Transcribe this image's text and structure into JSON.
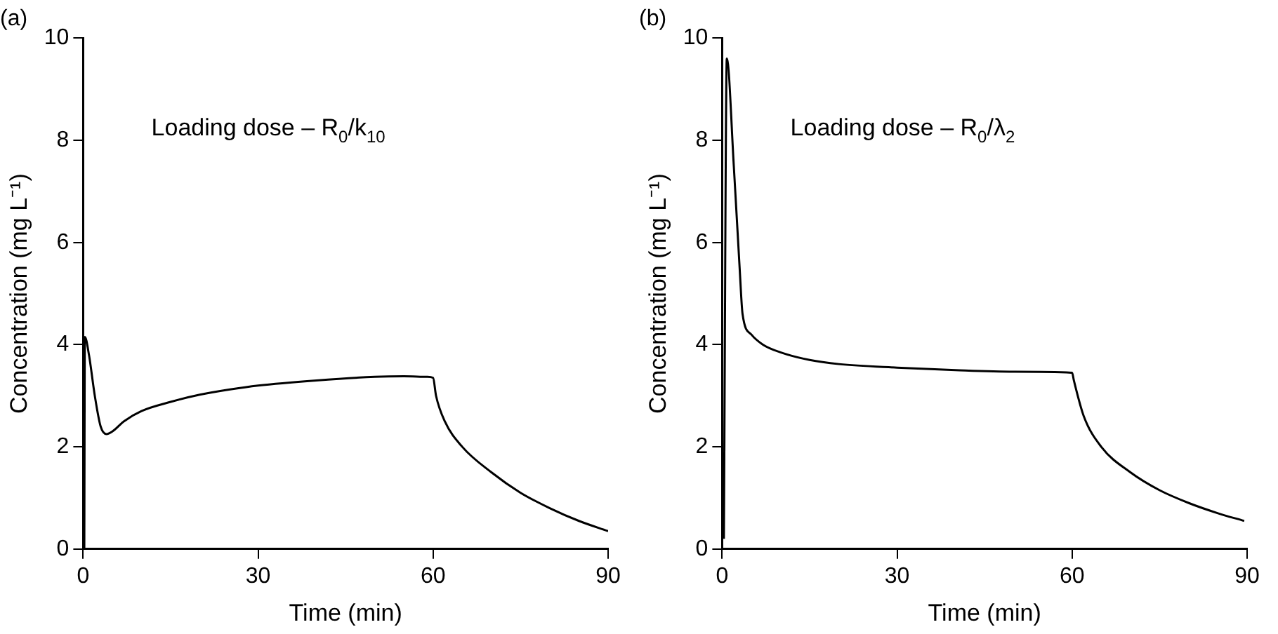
{
  "chart_data": [
    {
      "type": "line",
      "title": "(a)",
      "xlabel": "Time (min)",
      "ylabel": "Concentration (mg L⁻¹)",
      "annotations": [
        "Loading dose – R$_{0}$/k$_{10}$"
      ],
      "xlim": [
        0,
        90
      ],
      "xticks": [
        0,
        30,
        60,
        90
      ],
      "ylim": [
        0,
        10
      ],
      "yticks": [
        0,
        2,
        4,
        6,
        8,
        10
      ],
      "marker": "none",
      "series": [
        {
          "color": "#000000",
          "x": [
            0.2,
            0.3,
            1,
            2,
            3,
            4,
            5,
            7,
            10,
            15,
            20,
            25,
            30,
            40,
            50,
            55,
            59,
            60,
            60.5,
            62,
            65,
            70,
            75,
            80,
            85,
            90
          ],
          "values": [
            0,
            4.15,
            3.8,
            3.0,
            2.4,
            2.25,
            2.3,
            2.5,
            2.7,
            2.88,
            3.02,
            3.12,
            3.2,
            3.3,
            3.37,
            3.38,
            3.37,
            3.35,
            3.0,
            2.5,
            2.0,
            1.5,
            1.1,
            0.8,
            0.55,
            0.35
          ]
        }
      ]
    },
    {
      "type": "line",
      "title": "(b)",
      "xlabel": "Time (min)",
      "ylabel": "Concentration (mg L⁻¹)",
      "annotations": [
        "Loading dose – R$_{0}$/λ$_{2}$"
      ],
      "xlim": [
        0,
        90
      ],
      "xticks": [
        0,
        30,
        60,
        90
      ],
      "ylim": [
        0,
        10
      ],
      "yticks": [
        0,
        2,
        4,
        6,
        8,
        10
      ],
      "marker": "none",
      "series": [
        {
          "color": "#000000",
          "x": [
            0.3,
            0.8,
            2,
            3,
            3.5,
            5,
            7,
            10,
            15,
            20,
            30,
            40,
            50,
            60,
            60.3,
            62,
            65,
            70,
            75,
            80,
            85,
            89.5
          ],
          "values": [
            0.2,
            9.6,
            7.5,
            5.5,
            4.6,
            4.2,
            4.0,
            3.85,
            3.7,
            3.62,
            3.55,
            3.5,
            3.47,
            3.45,
            3.3,
            2.6,
            2.0,
            1.5,
            1.15,
            0.9,
            0.7,
            0.55
          ]
        }
      ]
    }
  ]
}
